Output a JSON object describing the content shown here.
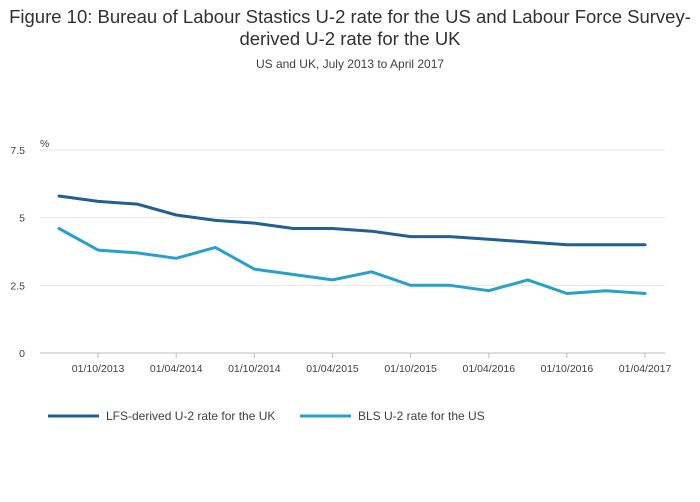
{
  "title": "Figure 10: Bureau of Labour Stastics U-2 rate for the US and Labour Force Survey-derived U-2 rate for the UK",
  "subtitle": "US and UK, July 2013 to April 2017",
  "chart_data": {
    "type": "line",
    "title": "Figure 10: Bureau of Labour Stastics U-2 rate for the US and Labour Force Survey-derived U-2 rate for the UK",
    "subtitle": "US and UK, July 2013 to April 2017",
    "ylabel": "%",
    "xlabel": "",
    "ylim": [
      0,
      7.5
    ],
    "y_ticks": [
      0,
      2.5,
      5,
      7.5
    ],
    "y_tick_labels": [
      "0",
      "2.5",
      "5",
      "7.5"
    ],
    "x": [
      "01/07/2013",
      "01/10/2013",
      "01/01/2014",
      "01/04/2014",
      "01/07/2014",
      "01/10/2014",
      "01/01/2015",
      "01/04/2015",
      "01/07/2015",
      "01/10/2015",
      "01/01/2016",
      "01/04/2016",
      "01/07/2016",
      "01/10/2016",
      "01/01/2017",
      "01/04/2017"
    ],
    "x_tick_labels": [
      "01/10/2013",
      "01/04/2014",
      "01/10/2014",
      "01/04/2015",
      "01/10/2015",
      "01/04/2016",
      "01/10/2016",
      "01/04/2017"
    ],
    "grid": true,
    "legend_position": "bottom",
    "series": [
      {
        "name": "LFS-derived U-2 rate for the UK",
        "color": "#206095",
        "values": [
          5.8,
          5.6,
          5.5,
          5.1,
          4.9,
          4.8,
          4.6,
          4.6,
          4.5,
          4.3,
          4.3,
          4.2,
          4.1,
          4.0,
          4.0,
          4.0
        ]
      },
      {
        "name": "BLS U-2 rate for the US",
        "color": "#27a0cc",
        "values": [
          4.6,
          3.8,
          3.7,
          3.5,
          3.9,
          3.1,
          2.9,
          2.7,
          3.0,
          2.5,
          2.5,
          2.3,
          2.7,
          2.2,
          2.3,
          2.2
        ]
      }
    ]
  }
}
